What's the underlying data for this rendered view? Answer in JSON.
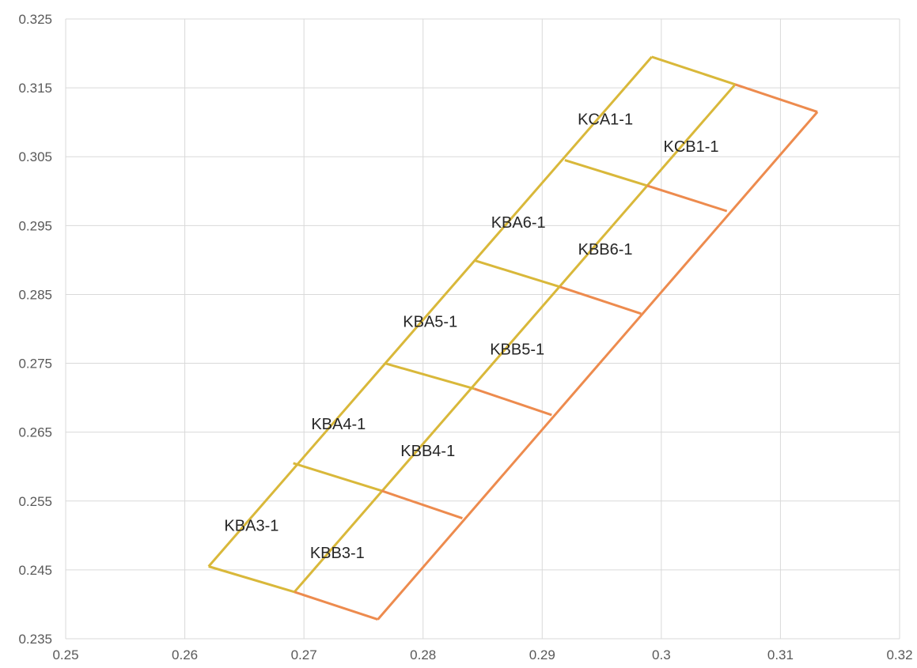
{
  "chart_data": {
    "type": "scatter",
    "title": "",
    "xlabel": "",
    "ylabel": "",
    "xlim": [
      0.25,
      0.32
    ],
    "ylim": [
      0.235,
      0.325
    ],
    "x_ticks": [
      "0.25",
      "0.26",
      "0.27",
      "0.28",
      "0.29",
      "0.3",
      "0.31",
      "0.32"
    ],
    "y_ticks": [
      "0.235",
      "0.245",
      "0.255",
      "0.265",
      "0.275",
      "0.285",
      "0.295",
      "0.305",
      "0.315",
      "0.325"
    ],
    "grid": true,
    "legend": "none",
    "colors": {
      "grid": "#d9d9d9",
      "series_a": "#d9b83a",
      "series_b": "#ed8b4e"
    },
    "series": [
      {
        "color": "#d9b83a",
        "polylines": [
          [
            [
              0.262,
              0.2455
            ],
            [
              0.2992,
              0.3195
            ]
          ],
          [
            [
              0.2692,
              0.2418
            ],
            [
              0.3062,
              0.3155
            ]
          ],
          [
            [
              0.262,
              0.2455
            ],
            [
              0.2692,
              0.2418
            ]
          ],
          [
            [
              0.2691,
              0.2605
            ],
            [
              0.2765,
              0.2565
            ]
          ],
          [
            [
              0.2768,
              0.275
            ],
            [
              0.2843,
              0.2713
            ]
          ],
          [
            [
              0.2844,
              0.2899
            ],
            [
              0.2915,
              0.2861
            ]
          ],
          [
            [
              0.2919,
              0.3045
            ],
            [
              0.2988,
              0.3008
            ]
          ],
          [
            [
              0.2992,
              0.3195
            ],
            [
              0.3062,
              0.3155
            ]
          ]
        ]
      },
      {
        "color": "#ed8b4e",
        "polylines": [
          [
            [
              0.2692,
              0.2418
            ],
            [
              0.2762,
              0.2378
            ]
          ],
          [
            [
              0.2762,
              0.2378
            ],
            [
              0.3131,
              0.3115
            ]
          ],
          [
            [
              0.2765,
              0.2565
            ],
            [
              0.2833,
              0.2525
            ]
          ],
          [
            [
              0.2843,
              0.2713
            ],
            [
              0.2908,
              0.2675
            ]
          ],
          [
            [
              0.2915,
              0.2861
            ],
            [
              0.2983,
              0.2822
            ]
          ],
          [
            [
              0.2988,
              0.3008
            ],
            [
              0.3055,
              0.2971
            ]
          ],
          [
            [
              0.3062,
              0.3155
            ],
            [
              0.3131,
              0.3115
            ]
          ]
        ]
      }
    ],
    "annotations": [
      {
        "text": "KBA3-1",
        "x": 0.2656,
        "y": 0.2515
      },
      {
        "text": "KBB3-1",
        "x": 0.2728,
        "y": 0.2475
      },
      {
        "text": "KBA4-1",
        "x": 0.2729,
        "y": 0.2662
      },
      {
        "text": "KBB4-1",
        "x": 0.2804,
        "y": 0.2623
      },
      {
        "text": "KBA5-1",
        "x": 0.2806,
        "y": 0.2811
      },
      {
        "text": "KBB5-1",
        "x": 0.2879,
        "y": 0.2771
      },
      {
        "text": "KBA6-1",
        "x": 0.288,
        "y": 0.2955
      },
      {
        "text": "KBB6-1",
        "x": 0.2953,
        "y": 0.2916
      },
      {
        "text": "KCA1-1",
        "x": 0.2953,
        "y": 0.3105
      },
      {
        "text": "KCB1-1",
        "x": 0.3025,
        "y": 0.3065
      }
    ]
  }
}
